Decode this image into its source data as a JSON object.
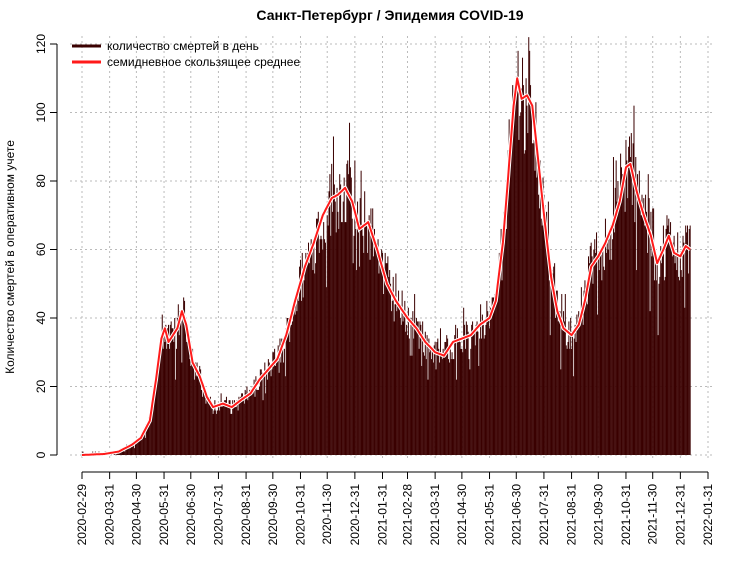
{
  "chart_data": {
    "type": "bar",
    "title": "Санкт-Петербург / Эпидемия COVID-19",
    "xlabel": "",
    "ylabel": "Количество смертей в оперативном учете",
    "ylim": [
      0,
      120
    ],
    "yticks": [
      0,
      20,
      40,
      60,
      80,
      100,
      120
    ],
    "x_start": "2020-02-29",
    "x_end": "2022-01-31",
    "xticks": [
      "2020-02-29",
      "2020-03-31",
      "2020-04-30",
      "2020-05-31",
      "2020-06-30",
      "2020-07-31",
      "2020-08-31",
      "2020-09-30",
      "2020-10-31",
      "2020-11-30",
      "2020-12-31",
      "2021-01-31",
      "2021-02-28",
      "2021-03-31",
      "2021-04-30",
      "2021-05-31",
      "2021-06-30",
      "2021-07-31",
      "2021-08-31",
      "2021-09-30",
      "2021-10-31",
      "2021-11-30",
      "2021-12-31",
      "2022-01-31"
    ],
    "grid": true,
    "legend_position": "top-left",
    "colors": {
      "daily": "#3a0000",
      "ma7": "#ff1a1a",
      "grid": "#bbbbbb"
    },
    "series": [
      {
        "name": "количество смертей в день",
        "style": "bars"
      },
      {
        "name": "семидневное скользящее среднее",
        "style": "line"
      }
    ],
    "ma7_anchors": [
      [
        "2020-02-29",
        0
      ],
      [
        "2020-03-25",
        0.3
      ],
      [
        "2020-04-10",
        1
      ],
      [
        "2020-04-25",
        3
      ],
      [
        "2020-05-05",
        5
      ],
      [
        "2020-05-15",
        10
      ],
      [
        "2020-05-22",
        22
      ],
      [
        "2020-05-28",
        34
      ],
      [
        "2020-06-01",
        37
      ],
      [
        "2020-06-05",
        33
      ],
      [
        "2020-06-10",
        35
      ],
      [
        "2020-06-15",
        37
      ],
      [
        "2020-06-20",
        42
      ],
      [
        "2020-06-25",
        38
      ],
      [
        "2020-07-02",
        27
      ],
      [
        "2020-07-10",
        23
      ],
      [
        "2020-07-18",
        17
      ],
      [
        "2020-07-25",
        14
      ],
      [
        "2020-08-05",
        15
      ],
      [
        "2020-08-15",
        14
      ],
      [
        "2020-08-25",
        16
      ],
      [
        "2020-09-05",
        18
      ],
      [
        "2020-09-15",
        22
      ],
      [
        "2020-09-25",
        25
      ],
      [
        "2020-10-05",
        28
      ],
      [
        "2020-10-15",
        35
      ],
      [
        "2020-10-25",
        45
      ],
      [
        "2020-11-05",
        55
      ],
      [
        "2020-11-15",
        62
      ],
      [
        "2020-11-25",
        70
      ],
      [
        "2020-12-05",
        75
      ],
      [
        "2020-12-12",
        76
      ],
      [
        "2020-12-20",
        78
      ],
      [
        "2020-12-28",
        74
      ],
      [
        "2021-01-05",
        66
      ],
      [
        "2021-01-15",
        68
      ],
      [
        "2021-01-25",
        60
      ],
      [
        "2021-02-05",
        50
      ],
      [
        "2021-02-15",
        45
      ],
      [
        "2021-02-28",
        40
      ],
      [
        "2021-03-10",
        37
      ],
      [
        "2021-03-20",
        33
      ],
      [
        "2021-03-31",
        30
      ],
      [
        "2021-04-10",
        29
      ],
      [
        "2021-04-20",
        33
      ],
      [
        "2021-04-30",
        34
      ],
      [
        "2021-05-10",
        35
      ],
      [
        "2021-05-20",
        38
      ],
      [
        "2021-05-31",
        40
      ],
      [
        "2021-06-07",
        45
      ],
      [
        "2021-06-15",
        62
      ],
      [
        "2021-06-22",
        85
      ],
      [
        "2021-06-27",
        102
      ],
      [
        "2021-07-01",
        110
      ],
      [
        "2021-07-06",
        104
      ],
      [
        "2021-07-12",
        105
      ],
      [
        "2021-07-18",
        102
      ],
      [
        "2021-07-25",
        85
      ],
      [
        "2021-08-01",
        68
      ],
      [
        "2021-08-08",
        52
      ],
      [
        "2021-08-15",
        42
      ],
      [
        "2021-08-22",
        37
      ],
      [
        "2021-08-31",
        35
      ],
      [
        "2021-09-08",
        38
      ],
      [
        "2021-09-15",
        45
      ],
      [
        "2021-09-22",
        55
      ],
      [
        "2021-09-30",
        58
      ],
      [
        "2021-10-08",
        62
      ],
      [
        "2021-10-16",
        67
      ],
      [
        "2021-10-24",
        74
      ],
      [
        "2021-10-31",
        84
      ],
      [
        "2021-11-05",
        85
      ],
      [
        "2021-11-12",
        77
      ],
      [
        "2021-11-20",
        70
      ],
      [
        "2021-11-28",
        64
      ],
      [
        "2021-12-05",
        56
      ],
      [
        "2021-12-12",
        60
      ],
      [
        "2021-12-18",
        64
      ],
      [
        "2021-12-24",
        59
      ],
      [
        "2021-12-31",
        58
      ],
      [
        "2022-01-06",
        61
      ],
      [
        "2022-01-11",
        60
      ]
    ]
  }
}
